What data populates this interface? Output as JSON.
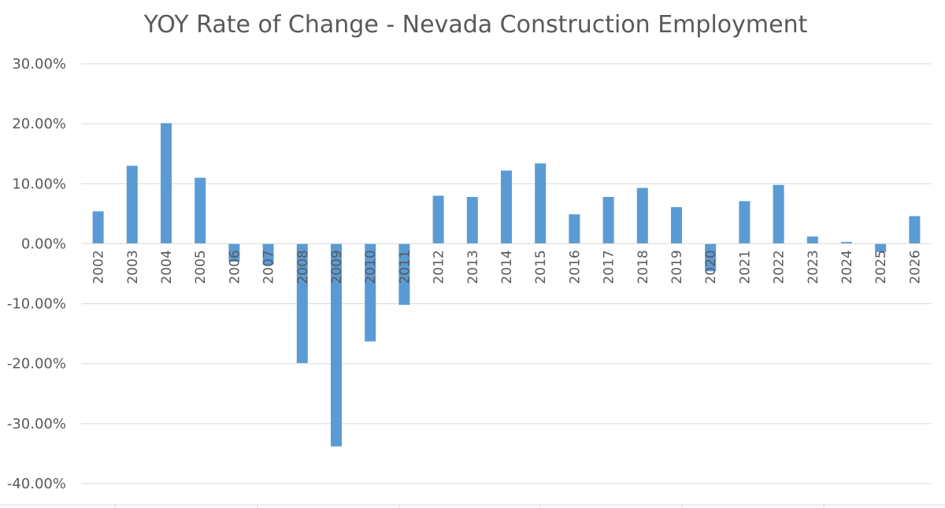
{
  "chart_data": {
    "type": "bar",
    "title": "YOY Rate of Change - Nevada Construction Employment",
    "xlabel": "",
    "ylabel": "",
    "categories": [
      "2002",
      "2003",
      "2004",
      "2005",
      "2006",
      "2007",
      "2008",
      "2009",
      "2010",
      "2011",
      "2012",
      "2013",
      "2014",
      "2015",
      "2016",
      "2017",
      "2018",
      "2019",
      "2020",
      "2021",
      "2022",
      "2023",
      "2024",
      "2025",
      "2026"
    ],
    "series": [
      {
        "values": [
          5.4,
          13.0,
          20.1,
          11.0,
          -3.0,
          -3.5,
          -19.9,
          -33.8,
          -16.3,
          -10.2,
          8.0,
          7.8,
          12.2,
          13.4,
          4.9,
          7.8,
          9.3,
          6.1,
          -4.6,
          7.1,
          9.8,
          1.2,
          0.3,
          -1.4,
          4.6
        ]
      }
    ],
    "ylim": [
      -40,
      30
    ],
    "y_ticks": [
      30,
      20,
      10,
      0,
      -10,
      -20,
      -30,
      -40
    ],
    "y_tick_labels": [
      "30.00%",
      "20.00%",
      "10.00%",
      "0.00%",
      "-10.00%",
      "-20.00%",
      "-30.00%",
      "-40.00%"
    ],
    "grid": true,
    "legend": "none",
    "colors": {
      "bar": "#5b9bd5",
      "grid": "#d9d9d9",
      "text": "#595959"
    }
  }
}
